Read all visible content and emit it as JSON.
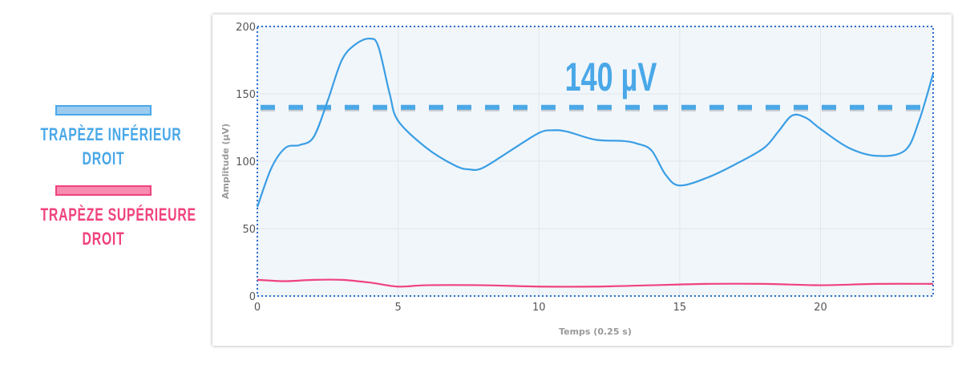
{
  "legend": [
    {
      "line1": "TRAPÈZE INFÉRIEUR",
      "line2": "DROIT",
      "color": "#4aa8e8",
      "fill": "#9ccbef"
    },
    {
      "line1": "TRAPÈZE SUPÉRIEURE",
      "line2": "DROIT",
      "color": "#f0437e",
      "fill": "#f78bb0"
    }
  ],
  "chart_data": {
    "type": "line",
    "xlabel": "Temps (0.25 s)",
    "ylabel": "Amplitude (µV)",
    "xlim": [
      0,
      24
    ],
    "ylim": [
      0,
      200
    ],
    "xticks": [
      0,
      5,
      10,
      15,
      20
    ],
    "yticks": [
      0,
      50,
      100,
      150,
      200
    ],
    "grid": true,
    "threshold": {
      "value": 140,
      "label": "140 µV",
      "color": "#4aa8e8",
      "style": "dashed"
    },
    "series": [
      {
        "name": "TRAPÈZE INFÉRIEUR DROIT",
        "color": "#3a9ee4",
        "x": [
          0,
          0.5,
          1,
          1.5,
          2,
          2.5,
          3,
          3.5,
          4,
          4.3,
          4.7,
          5,
          6,
          7,
          7.5,
          8,
          9,
          10,
          10.5,
          11,
          12,
          13,
          13.5,
          14,
          14.5,
          15,
          16,
          17,
          18,
          18.5,
          19,
          19.5,
          20,
          21,
          22,
          23,
          23.5,
          24
        ],
        "y": [
          66,
          95,
          110,
          112,
          118,
          145,
          175,
          187,
          191,
          185,
          150,
          130,
          110,
          97,
          94,
          95,
          108,
          121,
          123,
          122,
          116,
          115,
          113,
          108,
          90,
          82,
          88,
          98,
          110,
          122,
          134,
          132,
          124,
          110,
          104,
          108,
          130,
          165
        ]
      },
      {
        "name": "TRAPÈZE SUPÉRIEURE DROIT",
        "color": "#f0437e",
        "x": [
          0,
          1,
          2,
          3,
          4,
          5,
          6,
          8,
          10,
          12,
          14,
          16,
          18,
          20,
          22,
          24
        ],
        "y": [
          12,
          11,
          12,
          12,
          10,
          7,
          8,
          8,
          7,
          7,
          8,
          9,
          9,
          8,
          9,
          9
        ]
      }
    ]
  }
}
